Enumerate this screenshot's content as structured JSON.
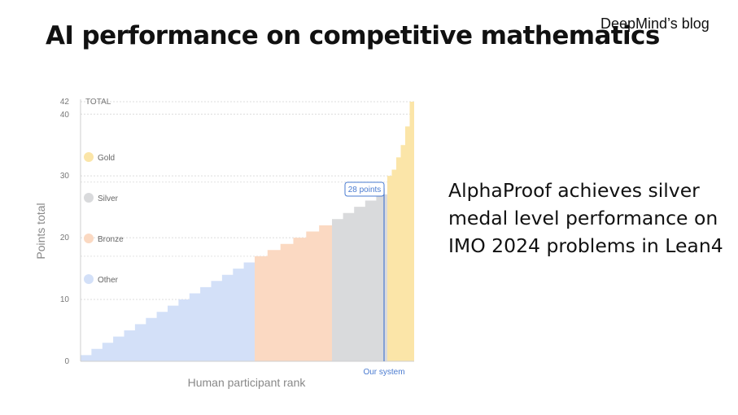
{
  "slide": {
    "title": "AI performance on competitive mathematics",
    "source": "DeepMind’s blog",
    "callout": "AlphaProof achieves silver medal level performance on IMO 2024 problems in Lean4"
  },
  "chart_data": {
    "type": "area",
    "title": "",
    "xlabel": "Human participant rank",
    "ylabel": "Points total",
    "ylim": [
      0,
      42
    ],
    "yticks": [
      0,
      10,
      20,
      30,
      40,
      42
    ],
    "top_tick_label": "TOTAL",
    "grid": true,
    "legend_position": "left",
    "legend": [
      {
        "name": "Gold",
        "color": "#fbe5a8"
      },
      {
        "name": "Silver",
        "color": "#d9dadc"
      },
      {
        "name": "Bronze",
        "color": "#fbd9c2"
      },
      {
        "name": "Other",
        "color": "#d3e0f8"
      }
    ],
    "series": [
      {
        "name": "Other",
        "color": "#d3e0f8",
        "values": [
          1,
          2,
          3,
          4,
          5,
          6,
          7,
          8,
          9,
          10,
          11,
          12,
          13,
          14,
          15,
          16
        ]
      },
      {
        "name": "Bronze",
        "color": "#fbd9c2",
        "values": [
          17,
          18,
          19,
          20,
          21,
          22
        ]
      },
      {
        "name": "Silver",
        "color": "#d9dadc",
        "values": [
          23,
          24,
          25,
          26,
          27
        ]
      },
      {
        "name": "Gold",
        "color": "#fbe5a8",
        "values": [
          30,
          31,
          33,
          35,
          38,
          42
        ]
      }
    ],
    "annotation": {
      "label": "28 points",
      "value": 28,
      "x_label": "Our system"
    }
  }
}
